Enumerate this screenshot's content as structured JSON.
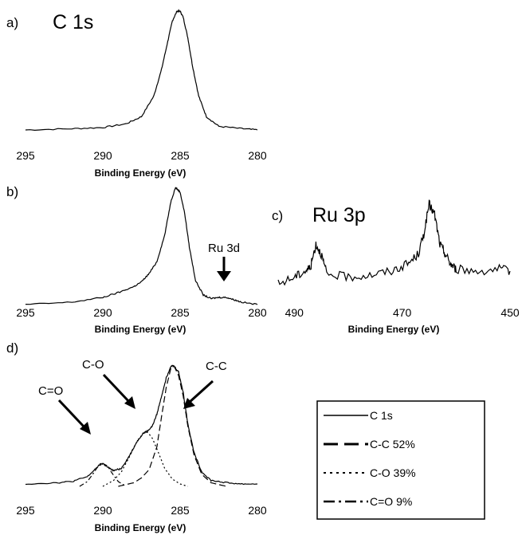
{
  "chart_data": [
    {
      "panel": "a)",
      "type": "line",
      "title": "C 1s",
      "xlabel": "Binding Energy (eV)",
      "xlim": [
        295,
        280
      ],
      "x_reversed": true,
      "xticks": [
        "295",
        "290",
        "285",
        "280"
      ],
      "series": [
        {
          "x": [
            295,
            292,
            290,
            288.5,
            287.5,
            286.7,
            286.2,
            285.8,
            285.5,
            285.2,
            285.0,
            284.8,
            284.5,
            284.2,
            283.8,
            283.3,
            282.5,
            281,
            280
          ],
          "y": [
            0.02,
            0.03,
            0.04,
            0.07,
            0.13,
            0.3,
            0.52,
            0.75,
            0.92,
            1.0,
            1.0,
            0.95,
            0.78,
            0.55,
            0.3,
            0.13,
            0.05,
            0.03,
            0.02
          ]
        }
      ]
    },
    {
      "panel": "b)",
      "type": "line",
      "xlabel": "Binding Energy (eV)",
      "xlim": [
        295,
        280
      ],
      "x_reversed": true,
      "xticks": [
        "295",
        "290",
        "285",
        "280"
      ],
      "annotations": [
        {
          "text": "Ru 3d",
          "x": 282.8
        }
      ],
      "series": [
        {
          "x": [
            295,
            292,
            290,
            289,
            288,
            287.5,
            287,
            286.5,
            286,
            285.6,
            285.3,
            285.0,
            284.7,
            284.4,
            284.0,
            283.5,
            283,
            282.5,
            282,
            281.5,
            281,
            280
          ],
          "y": [
            0.02,
            0.04,
            0.08,
            0.12,
            0.17,
            0.21,
            0.28,
            0.38,
            0.6,
            0.88,
            1.0,
            0.96,
            0.78,
            0.5,
            0.22,
            0.1,
            0.07,
            0.08,
            0.08,
            0.06,
            0.04,
            0.02
          ]
        }
      ]
    },
    {
      "panel": "c)",
      "type": "line",
      "title": "Ru 3p",
      "xlabel": "Binding Energy (eV)",
      "xlim": [
        493,
        450
      ],
      "x_reversed": true,
      "xticks": [
        "490",
        "470",
        "450"
      ],
      "series": [
        {
          "x": [
            493,
            490,
            488,
            487,
            486,
            485,
            484,
            480,
            476,
            472,
            469,
            467,
            466,
            465,
            464,
            463,
            462,
            461,
            460,
            456,
            452,
            450
          ],
          "y": [
            0.15,
            0.22,
            0.28,
            0.32,
            0.55,
            0.45,
            0.25,
            0.22,
            0.24,
            0.28,
            0.35,
            0.45,
            0.65,
            0.95,
            0.85,
            0.55,
            0.45,
            0.35,
            0.3,
            0.28,
            0.3,
            0.28
          ]
        }
      ]
    },
    {
      "panel": "d)",
      "type": "line",
      "xlabel": "Binding Energy (eV)",
      "xlim": [
        295,
        280
      ],
      "x_reversed": true,
      "xticks": [
        "295",
        "290",
        "285",
        "280"
      ],
      "annotations": [
        {
          "text": "C=O",
          "x": 290.0
        },
        {
          "text": "C-O",
          "x": 287.2
        },
        {
          "text": "C-C",
          "x": 285.5
        }
      ],
      "legend": [
        "C 1s",
        "C-C 52%",
        "C-O 39%",
        "C=O 9%"
      ],
      "series": [
        {
          "name": "C 1s",
          "x": [
            295,
            293,
            292,
            291,
            290.5,
            290.2,
            290.0,
            289.7,
            289.3,
            288.8,
            288.3,
            287.8,
            287.4,
            287.1,
            286.8,
            286.5,
            286.2,
            285.9,
            285.6,
            285.4,
            285.1,
            284.8,
            284.5,
            284.1,
            283.6,
            283,
            282,
            281,
            280
          ],
          "y": [
            0.02,
            0.03,
            0.04,
            0.08,
            0.14,
            0.18,
            0.19,
            0.16,
            0.13,
            0.15,
            0.25,
            0.37,
            0.44,
            0.46,
            0.5,
            0.6,
            0.75,
            0.9,
            1.0,
            1.0,
            0.95,
            0.78,
            0.52,
            0.28,
            0.12,
            0.05,
            0.03,
            0.02,
            0.02
          ]
        },
        {
          "name": "C-C 52%",
          "x": [
            289,
            288,
            287.5,
            287,
            286.5,
            286.2,
            285.9,
            285.6,
            285.4,
            285.1,
            284.8,
            284.5,
            284.1,
            283.6,
            283,
            282
          ],
          "y": [
            0.0,
            0.03,
            0.07,
            0.14,
            0.33,
            0.58,
            0.82,
            0.98,
            1.0,
            0.92,
            0.75,
            0.5,
            0.26,
            0.1,
            0.03,
            0.0
          ]
        },
        {
          "name": "C-O 39%",
          "x": [
            290,
            289.3,
            288.8,
            288.3,
            287.8,
            287.4,
            287.1,
            286.8,
            286.4,
            286.0,
            285.5,
            285.0,
            284.5
          ],
          "y": [
            0.0,
            0.05,
            0.12,
            0.24,
            0.37,
            0.44,
            0.45,
            0.4,
            0.28,
            0.15,
            0.06,
            0.02,
            0.0
          ]
        },
        {
          "name": "C=O 9%",
          "x": [
            291.5,
            291,
            290.6,
            290.3,
            290.0,
            289.7,
            289.4,
            289,
            288.5
          ],
          "y": [
            0.0,
            0.04,
            0.11,
            0.17,
            0.19,
            0.17,
            0.11,
            0.04,
            0.0
          ]
        }
      ]
    }
  ]
}
